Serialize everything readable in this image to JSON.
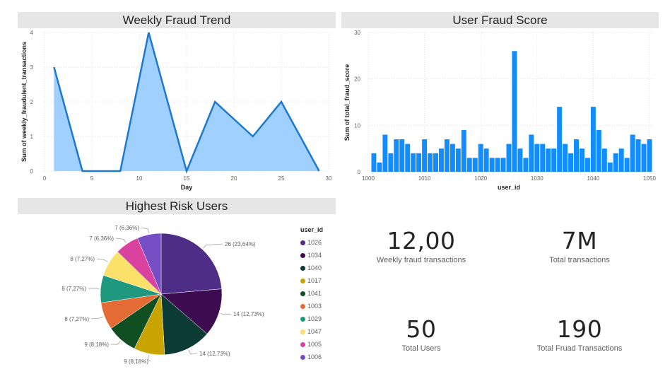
{
  "panels": {
    "weekly": {
      "title": "Weekly Fraud Trend"
    },
    "score": {
      "title": "User Fraud Score"
    },
    "risk": {
      "title": "Highest Risk Users"
    }
  },
  "cards": [
    {
      "value": "12,00",
      "label": "Weekly fraud transactions"
    },
    {
      "value": "7M",
      "label": "Total transactions"
    },
    {
      "value": "50",
      "label": "Total Users"
    },
    {
      "value": "190",
      "label": "Total Fruad Transactions"
    }
  ],
  "legend": {
    "title": "user_id",
    "items": [
      {
        "label": "1026",
        "color": "#4e2d87"
      },
      {
        "label": "1034",
        "color": "#3d0b4f"
      },
      {
        "label": "1040",
        "color": "#0c3b35"
      },
      {
        "label": "1017",
        "color": "#c9a400"
      },
      {
        "label": "1041",
        "color": "#0f4f22"
      },
      {
        "label": "1003",
        "color": "#e56b34"
      },
      {
        "label": "1029",
        "color": "#1f9880"
      },
      {
        "label": "1047",
        "color": "#fbe06a"
      },
      {
        "label": "1005",
        "color": "#d9439f"
      },
      {
        "label": "1006",
        "color": "#744ec2"
      }
    ]
  },
  "chart_data": [
    {
      "type": "area",
      "title": "Weekly Fraud Trend",
      "xlabel": "Day",
      "ylabel": "Sum of weekly_fraudulent_transactions",
      "x": [
        1,
        4,
        8,
        11,
        15,
        18,
        22,
        25,
        29
      ],
      "values": [
        3,
        0,
        0,
        4,
        0,
        2,
        1,
        2,
        0
      ],
      "xlim": [
        0,
        30
      ],
      "ylim": [
        0,
        4
      ],
      "xticks": [
        0,
        5,
        10,
        15,
        20,
        25,
        30
      ],
      "yticks": [
        0,
        1,
        2,
        3,
        4
      ],
      "grid": true,
      "color": "#118dff"
    },
    {
      "type": "bar",
      "title": "User Fraud Score",
      "xlabel": "user_id",
      "ylabel": "Sum of total_fraud_score",
      "x": [
        1001,
        1002,
        1003,
        1004,
        1005,
        1006,
        1007,
        1008,
        1009,
        1010,
        1011,
        1012,
        1013,
        1014,
        1015,
        1016,
        1017,
        1018,
        1019,
        1020,
        1021,
        1022,
        1023,
        1024,
        1025,
        1026,
        1027,
        1028,
        1029,
        1030,
        1031,
        1032,
        1033,
        1034,
        1035,
        1036,
        1037,
        1038,
        1039,
        1040,
        1041,
        1042,
        1043,
        1044,
        1045,
        1046,
        1047,
        1048,
        1049,
        1050
      ],
      "values": [
        4,
        2,
        8,
        4,
        7,
        7,
        6,
        4,
        4,
        7,
        4,
        4,
        5,
        7,
        6,
        5,
        9,
        3,
        3,
        6,
        5,
        3,
        3,
        3,
        6,
        26,
        5,
        3,
        8,
        6,
        6,
        5,
        5,
        14,
        6,
        4,
        7,
        5,
        3,
        14,
        9,
        5,
        2,
        4,
        5,
        3,
        8,
        7,
        6,
        7
      ],
      "xlim": [
        1000,
        1050
      ],
      "ylim": [
        0,
        30
      ],
      "xticks": [
        1000,
        1010,
        1020,
        1030,
        1040,
        1050
      ],
      "yticks": [
        0,
        10,
        20,
        30
      ],
      "grid": true,
      "color": "#118dff"
    },
    {
      "type": "pie",
      "title": "Highest Risk Users",
      "legend_title": "user_id",
      "legend_position": "right",
      "categories": [
        "1026",
        "1034",
        "1040",
        "1017",
        "1041",
        "1003",
        "1029",
        "1047",
        "1005",
        "1006"
      ],
      "values": [
        26,
        14,
        14,
        9,
        9,
        8,
        8,
        8,
        7,
        7
      ],
      "labels": [
        "26 (23,64%)",
        "14 (12,73%)",
        "14 (12,73%)",
        "9 (8,18%)",
        "9 (8,18%)",
        "8 (7,27%)",
        "8 (7,27%)",
        "8 (7,27%)",
        "7 (6,36%)",
        "7 (6,36%)"
      ]
    }
  ]
}
